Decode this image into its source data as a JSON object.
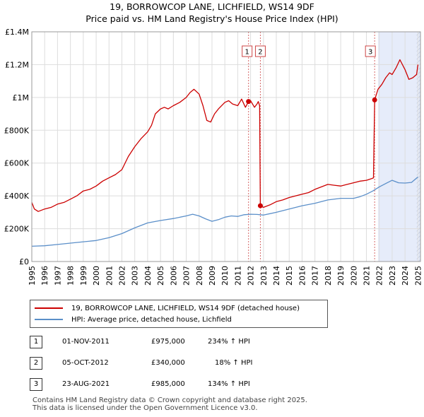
{
  "title_line1": "19, BORROWCOP LANE, LICHFIELD, WS14 9DF",
  "title_line2": "Price paid vs. HM Land Registry's House Price Index (HPI)",
  "colors": {
    "property": "#cc0000",
    "hpi": "#5b8fc9",
    "shade": "#e6ecfa",
    "vline": "#cc4444"
  },
  "chart_data": {
    "type": "line",
    "title": "19, BORROWCOP LANE, LICHFIELD, WS14 9DF — Price paid vs. HM Land Registry's House Price Index (HPI)",
    "xlim": [
      1995,
      2025.2
    ],
    "ylim": [
      0,
      1400000
    ],
    "x_ticks": [
      1995,
      1996,
      1997,
      1998,
      1999,
      2000,
      2001,
      2002,
      2003,
      2004,
      2005,
      2006,
      2007,
      2008,
      2009,
      2010,
      2011,
      2012,
      2013,
      2014,
      2015,
      2016,
      2017,
      2018,
      2019,
      2020,
      2021,
      2022,
      2023,
      2024,
      2025
    ],
    "y_ticks": [
      {
        "value": 0,
        "label": "£0"
      },
      {
        "value": 200000,
        "label": "£200K"
      },
      {
        "value": 400000,
        "label": "£400K"
      },
      {
        "value": 600000,
        "label": "£600K"
      },
      {
        "value": 800000,
        "label": "£800K"
      },
      {
        "value": 1000000,
        "label": "£1M"
      },
      {
        "value": 1200000,
        "label": "£1.2M"
      },
      {
        "value": 1400000,
        "label": "£1.4M"
      }
    ],
    "grid": true,
    "shaded_region": [
      2021.9,
      2025.2
    ],
    "hatched_region": [
      2024.9,
      2025.2
    ],
    "series": [
      {
        "name": "19, BORROWCOP LANE, LICHFIELD, WS14 9DF (detached house)",
        "x": [
          1995.0,
          1995.2,
          1995.5,
          1996.0,
          1996.5,
          1997.0,
          1997.5,
          1998.0,
          1998.5,
          1999.0,
          1999.5,
          2000.0,
          2000.5,
          2001.0,
          2001.5,
          2002.0,
          2002.5,
          2003.0,
          2003.5,
          2004.0,
          2004.3,
          2004.6,
          2005.0,
          2005.3,
          2005.6,
          2006.0,
          2006.5,
          2007.0,
          2007.3,
          2007.6,
          2008.0,
          2008.3,
          2008.6,
          2008.9,
          2009.2,
          2009.5,
          2010.0,
          2010.3,
          2010.6,
          2011.0,
          2011.3,
          2011.6,
          2011.84,
          2012.0,
          2012.3,
          2012.5,
          2012.6,
          2012.7,
          2012.76,
          2013.0,
          2013.5,
          2014.0,
          2014.5,
          2015.0,
          2015.5,
          2016.0,
          2016.5,
          2017.0,
          2017.5,
          2018.0,
          2018.5,
          2019.0,
          2019.5,
          2020.0,
          2020.5,
          2021.0,
          2021.4,
          2021.55,
          2021.64,
          2021.9,
          2022.2,
          2022.5,
          2022.8,
          2023.0,
          2023.3,
          2023.6,
          2024.0,
          2024.3,
          2024.6,
          2024.9,
          2025.0
        ],
        "values": [
          360000,
          320000,
          305000,
          320000,
          330000,
          350000,
          360000,
          380000,
          400000,
          430000,
          440000,
          460000,
          490000,
          510000,
          530000,
          560000,
          640000,
          700000,
          750000,
          790000,
          830000,
          900000,
          930000,
          940000,
          930000,
          950000,
          970000,
          1000000,
          1030000,
          1050000,
          1020000,
          950000,
          860000,
          850000,
          900000,
          930000,
          970000,
          980000,
          960000,
          950000,
          990000,
          940000,
          975000,
          980000,
          940000,
          960000,
          975000,
          950000,
          340000,
          330000,
          345000,
          365000,
          375000,
          390000,
          400000,
          410000,
          420000,
          440000,
          455000,
          470000,
          465000,
          460000,
          470000,
          480000,
          490000,
          495000,
          505000,
          510000,
          985000,
          1050000,
          1080000,
          1120000,
          1150000,
          1140000,
          1180000,
          1230000,
          1170000,
          1110000,
          1120000,
          1140000,
          1200000
        ]
      },
      {
        "name": "HPI: Average price, detached house, Lichfield",
        "x": [
          1995.0,
          1996.0,
          1997.0,
          1998.0,
          1999.0,
          2000.0,
          2001.0,
          2002.0,
          2003.0,
          2004.0,
          2005.0,
          2006.0,
          2007.0,
          2007.5,
          2008.0,
          2008.5,
          2009.0,
          2009.5,
          2010.0,
          2010.5,
          2011.0,
          2011.5,
          2012.0,
          2012.5,
          2013.0,
          2014.0,
          2015.0,
          2016.0,
          2017.0,
          2018.0,
          2019.0,
          2020.0,
          2020.5,
          2021.0,
          2021.5,
          2022.0,
          2022.5,
          2023.0,
          2023.5,
          2024.0,
          2024.5,
          2025.0
        ],
        "values": [
          93000,
          96000,
          104000,
          112000,
          120000,
          128000,
          145000,
          170000,
          205000,
          235000,
          250000,
          262000,
          278000,
          288000,
          278000,
          260000,
          245000,
          255000,
          270000,
          278000,
          275000,
          285000,
          288000,
          287000,
          283000,
          300000,
          320000,
          340000,
          355000,
          375000,
          385000,
          385000,
          395000,
          410000,
          430000,
          455000,
          475000,
          495000,
          480000,
          478000,
          482000,
          515000
        ]
      }
    ],
    "sales": [
      {
        "label": "1",
        "date": "01-NOV-2011",
        "x": 2011.84,
        "price": 975000
      },
      {
        "label": "2",
        "date": "05-OCT-2012",
        "x": 2012.76,
        "price": 340000
      },
      {
        "label": "3",
        "date": "23-AUG-2021",
        "x": 2021.64,
        "price": 985000
      }
    ]
  },
  "legend": {
    "property_label": "19, BORROWCOP LANE, LICHFIELD, WS14 9DF (detached house)",
    "hpi_label": "HPI: Average price, detached house, Lichfield"
  },
  "transactions": [
    {
      "num": "1",
      "date": "01-NOV-2011",
      "price": "£975,000",
      "hpi": "234% ↑ HPI"
    },
    {
      "num": "2",
      "date": "05-OCT-2012",
      "price": "£340,000",
      "hpi": "18% ↑ HPI"
    },
    {
      "num": "3",
      "date": "23-AUG-2021",
      "price": "£985,000",
      "hpi": "134% ↑ HPI"
    }
  ],
  "footer_line1": "Contains HM Land Registry data © Crown copyright and database right 2025.",
  "footer_line2": "This data is licensed under the Open Government Licence v3.0."
}
